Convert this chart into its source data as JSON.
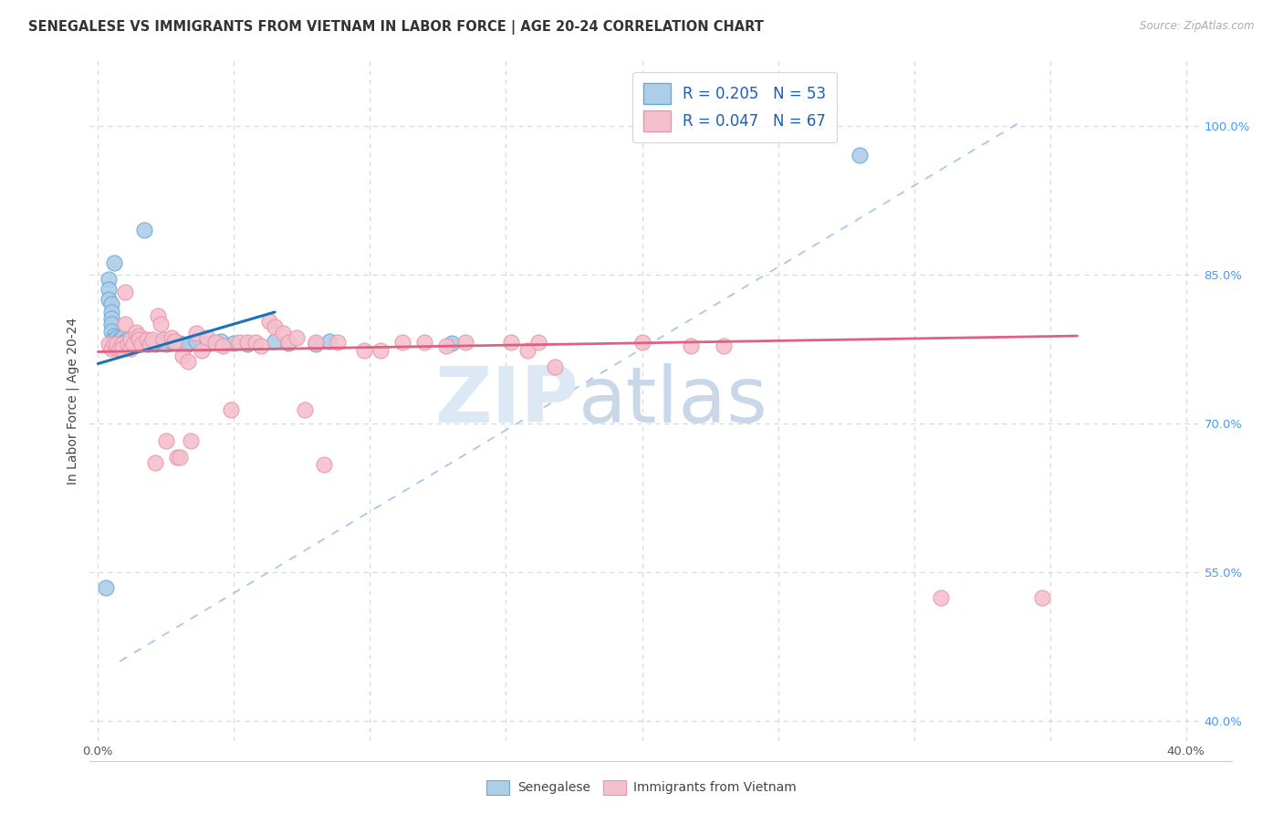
{
  "title": "SENEGALESE VS IMMIGRANTS FROM VIETNAM IN LABOR FORCE | AGE 20-24 CORRELATION CHART",
  "source": "Source: ZipAtlas.com",
  "ylabel": "In Labor Force | Age 20-24",
  "xlim": [
    -0.003,
    0.405
  ],
  "ylim": [
    0.38,
    1.065
  ],
  "x_ticks": [
    0.0,
    0.05,
    0.1,
    0.15,
    0.2,
    0.25,
    0.3,
    0.35,
    0.4
  ],
  "x_tick_labels": [
    "0.0%",
    "",
    "",
    "",
    "",
    "",
    "",
    "",
    "40.0%"
  ],
  "y_ticks": [
    0.4,
    0.55,
    0.7,
    0.85,
    1.0
  ],
  "y_tick_labels_right": [
    "40.0%",
    "55.0%",
    "70.0%",
    "85.0%",
    "100.0%"
  ],
  "legend_blue_r": "R = 0.205",
  "legend_blue_n": "N = 53",
  "legend_pink_r": "R = 0.047",
  "legend_pink_n": "N = 67",
  "blue_color": "#aecde8",
  "pink_color": "#f5c0ce",
  "blue_edge_color": "#6aaad4",
  "pink_edge_color": "#e896aa",
  "blue_line_color": "#1a72b8",
  "pink_line_color": "#e06080",
  "dashed_line_color": "#a8c8e8",
  "watermark_color": "#dce8f4",
  "bg_color": "#ffffff",
  "grid_color": "#d8d8d8",
  "blue_scatter_x": [
    0.003,
    0.017,
    0.006,
    0.004,
    0.004,
    0.004,
    0.005,
    0.005,
    0.005,
    0.005,
    0.005,
    0.006,
    0.006,
    0.006,
    0.007,
    0.007,
    0.008,
    0.008,
    0.009,
    0.009,
    0.009,
    0.01,
    0.01,
    0.011,
    0.011,
    0.012,
    0.013,
    0.013,
    0.014,
    0.015,
    0.016,
    0.017,
    0.018,
    0.019,
    0.02,
    0.021,
    0.023,
    0.024,
    0.025,
    0.027,
    0.03,
    0.033,
    0.036,
    0.04,
    0.045,
    0.05,
    0.055,
    0.065,
    0.07,
    0.08,
    0.085,
    0.13,
    0.28
  ],
  "blue_scatter_y": [
    0.534,
    0.895,
    0.862,
    0.845,
    0.835,
    0.825,
    0.82,
    0.812,
    0.806,
    0.8,
    0.793,
    0.788,
    0.784,
    0.78,
    0.783,
    0.786,
    0.781,
    0.784,
    0.78,
    0.783,
    0.786,
    0.78,
    0.783,
    0.781,
    0.784,
    0.78,
    0.783,
    0.781,
    0.78,
    0.783,
    0.781,
    0.784,
    0.78,
    0.783,
    0.781,
    0.78,
    0.783,
    0.781,
    0.78,
    0.783,
    0.781,
    0.78,
    0.783,
    0.78,
    0.783,
    0.781,
    0.78,
    0.783,
    0.781,
    0.78,
    0.783,
    0.781,
    0.97
  ],
  "pink_scatter_x": [
    0.004,
    0.005,
    0.006,
    0.007,
    0.007,
    0.008,
    0.009,
    0.009,
    0.01,
    0.01,
    0.011,
    0.012,
    0.012,
    0.013,
    0.014,
    0.015,
    0.015,
    0.016,
    0.018,
    0.019,
    0.02,
    0.021,
    0.022,
    0.023,
    0.024,
    0.025,
    0.027,
    0.028,
    0.029,
    0.03,
    0.031,
    0.033,
    0.034,
    0.036,
    0.038,
    0.04,
    0.043,
    0.046,
    0.049,
    0.052,
    0.055,
    0.058,
    0.06,
    0.063,
    0.065,
    0.068,
    0.07,
    0.073,
    0.076,
    0.08,
    0.083,
    0.088,
    0.098,
    0.104,
    0.112,
    0.12,
    0.128,
    0.135,
    0.152,
    0.158,
    0.162,
    0.168,
    0.2,
    0.218,
    0.23,
    0.31,
    0.347
  ],
  "pink_scatter_y": [
    0.78,
    0.775,
    0.78,
    0.775,
    0.78,
    0.775,
    0.78,
    0.775,
    0.832,
    0.8,
    0.78,
    0.775,
    0.784,
    0.78,
    0.792,
    0.788,
    0.784,
    0.78,
    0.784,
    0.78,
    0.784,
    0.66,
    0.808,
    0.8,
    0.784,
    0.682,
    0.786,
    0.783,
    0.666,
    0.666,
    0.768,
    0.762,
    0.682,
    0.791,
    0.773,
    0.786,
    0.782,
    0.778,
    0.714,
    0.782,
    0.782,
    0.782,
    0.778,
    0.803,
    0.797,
    0.791,
    0.782,
    0.786,
    0.714,
    0.782,
    0.658,
    0.782,
    0.773,
    0.773,
    0.782,
    0.782,
    0.778,
    0.782,
    0.782,
    0.773,
    0.782,
    0.757,
    0.782,
    0.778,
    0.778,
    0.524,
    0.524
  ],
  "blue_line_x": [
    0.0,
    0.065
  ],
  "blue_line_y": [
    0.76,
    0.812
  ],
  "pink_line_x": [
    0.0,
    0.36
  ],
  "pink_line_y": [
    0.772,
    0.788
  ],
  "dashed_line_x": [
    0.008,
    0.34
  ],
  "dashed_line_y": [
    0.46,
    1.005
  ],
  "title_fontsize": 10.5,
  "tick_fontsize": 9.5,
  "legend_fontsize": 12
}
